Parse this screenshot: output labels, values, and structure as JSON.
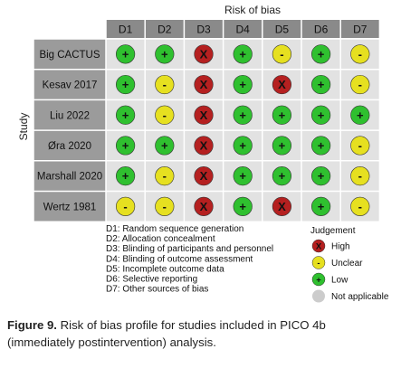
{
  "chart_data": {
    "type": "table",
    "title": "Risk of bias",
    "ylabel": "Study",
    "columns": [
      "D1",
      "D2",
      "D3",
      "D4",
      "D5",
      "D6",
      "D7"
    ],
    "studies": [
      "Big CACTUS",
      "Kesav 2017",
      "Liu 2022",
      "Øra 2020",
      "Marshall 2020",
      "Wertz 1981"
    ],
    "judgements": [
      [
        "Low",
        "Low",
        "High",
        "Low",
        "Unclear",
        "Low",
        "Unclear"
      ],
      [
        "Low",
        "Unclear",
        "High",
        "Low",
        "High",
        "Low",
        "Unclear"
      ],
      [
        "Low",
        "Unclear",
        "High",
        "Low",
        "Low",
        "Low",
        "Low"
      ],
      [
        "Low",
        "Low",
        "High",
        "Low",
        "Low",
        "Low",
        "Unclear"
      ],
      [
        "Low",
        "Unclear",
        "High",
        "Low",
        "Low",
        "Low",
        "Unclear"
      ],
      [
        "Unclear",
        "Unclear",
        "High",
        "Low",
        "High",
        "Low",
        "Unclear"
      ]
    ],
    "domains": [
      "D1: Random sequence generation",
      "D2: Allocation concealment",
      "D3: Blinding of participants and personnel",
      "D4: Blinding of outcome assessment",
      "D5: Incomplete outcome data",
      "D6: Selective reporting",
      "D7: Other sources of bias"
    ],
    "legend": {
      "title": "Judgement",
      "items": [
        {
          "key": "High",
          "label": "High",
          "symbol": "X",
          "color": "#b52020"
        },
        {
          "key": "Unclear",
          "label": "Unclear",
          "symbol": "-",
          "color": "#e6e020"
        },
        {
          "key": "Low",
          "label": "Low",
          "symbol": "+",
          "color": "#2fc02f"
        },
        {
          "key": "NA",
          "label": "Not applicable",
          "symbol": "",
          "color": "#cccccc"
        }
      ]
    }
  },
  "caption": {
    "label": "Figure 9.",
    "text": " Risk of bias profile for studies included in PICO 4b (immediately postintervention) analysis."
  }
}
